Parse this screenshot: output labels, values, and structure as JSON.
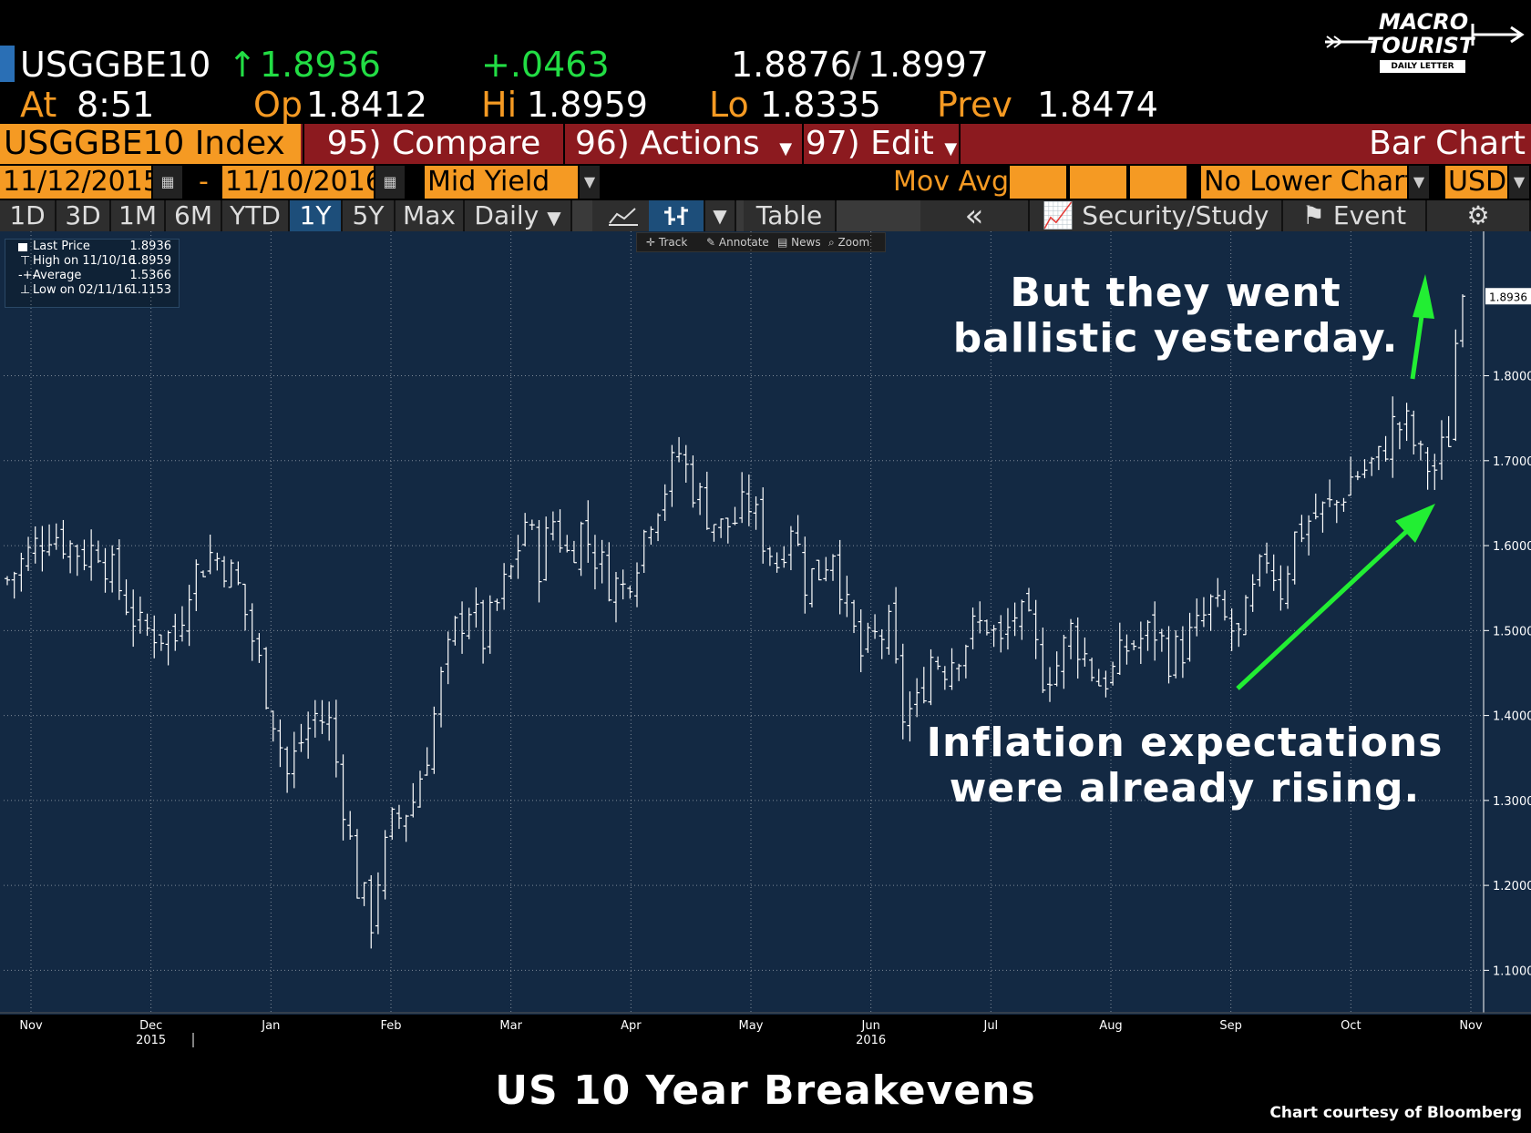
{
  "quote": {
    "ticker": "USGGBE10",
    "last": "1.8936",
    "arrow": "↑",
    "change": "+.0463",
    "bid": "1.8876",
    "sep": "/",
    "ask": "1.8997",
    "at_label": "At",
    "time": "8:51",
    "op_label": "Op",
    "open": "1.8412",
    "hi_label": "Hi",
    "high": "1.8959",
    "lo_label": "Lo",
    "low": "1.8335",
    "prev_label": "Prev",
    "prev": "1.8474"
  },
  "logo": {
    "line1": "MACRO",
    "line2": "TOURIST",
    "line3": "DAILY LETTER"
  },
  "menubar": {
    "security": "USGGBE10 Index",
    "compare": "95) Compare",
    "actions": "96) Actions",
    "edit": "97) Edit",
    "chart_type": "Bar Chart"
  },
  "settings": {
    "start_date": "11/12/2015",
    "dash": "-",
    "end_date": "11/10/2016",
    "field": "Mid Yield",
    "mov_avg": "Mov Avg",
    "lower_chart": "No Lower Chart",
    "currency": "USD"
  },
  "toolbar": {
    "periods": [
      "1D",
      "3D",
      "1M",
      "6M",
      "YTD",
      "1Y",
      "5Y",
      "Max"
    ],
    "selected_period": "1Y",
    "frequency": "Daily",
    "table": "Table",
    "collapse": "«",
    "security_study": "Security/Study",
    "event": "Event",
    "tools": [
      "Track",
      "Annotate",
      "News",
      "Zoom"
    ]
  },
  "legend": [
    {
      "label": "Last Price",
      "value": "1.8936"
    },
    {
      "label": "High on 11/10/16",
      "value": "1.8959"
    },
    {
      "label": "Average",
      "value": "1.5366"
    },
    {
      "label": "Low on 02/11/16",
      "value": "1.1153"
    }
  ],
  "annotations": {
    "top1": "But they went",
    "top2": "ballistic yesterday.",
    "bottom1": "Inflation expectations",
    "bottom2": "were already rising."
  },
  "colors": {
    "accent": "#f59a23",
    "arrow": "#22ee33",
    "chart_bg": "#132943",
    "bar": "#ffffff"
  },
  "chart_data": {
    "type": "bar",
    "title": "US 10 Year Breakevens",
    "credit": "Chart courtesy of Bloomberg",
    "last_price_tag": "1.8936",
    "ylim": [
      1.05,
      1.97
    ],
    "y_ticks": [
      "1.1000",
      "1.2000",
      "1.3000",
      "1.4000",
      "1.5000",
      "1.6000",
      "1.7000",
      "1.8000"
    ],
    "x_months": [
      "Nov",
      "Dec",
      "Jan",
      "Feb",
      "Mar",
      "Apr",
      "May",
      "Jun",
      "Jul",
      "Aug",
      "Sep",
      "Oct",
      "Nov"
    ],
    "x_years": [
      "2015",
      "2016"
    ],
    "series": [
      {
        "keypoints": [
          [
            0,
            1.56
          ],
          [
            4,
            1.6
          ],
          [
            6,
            1.62
          ],
          [
            9,
            1.6
          ],
          [
            11,
            1.59
          ],
          [
            13,
            1.6
          ],
          [
            16,
            1.55
          ],
          [
            19,
            1.5
          ],
          [
            21,
            1.5
          ],
          [
            24,
            1.49
          ],
          [
            26,
            1.56
          ],
          [
            29,
            1.59
          ],
          [
            31,
            1.58
          ],
          [
            33,
            1.55
          ],
          [
            36,
            1.46
          ],
          [
            38,
            1.4
          ],
          [
            40,
            1.33
          ],
          [
            42,
            1.37
          ],
          [
            44,
            1.4
          ],
          [
            46,
            1.39
          ],
          [
            48,
            1.3
          ],
          [
            50,
            1.2
          ],
          [
            52,
            1.16
          ],
          [
            53,
            1.21
          ],
          [
            55,
            1.27
          ],
          [
            58,
            1.3
          ],
          [
            60,
            1.36
          ],
          [
            62,
            1.44
          ],
          [
            64,
            1.5
          ],
          [
            66,
            1.53
          ],
          [
            68,
            1.49
          ],
          [
            70,
            1.53
          ],
          [
            72,
            1.57
          ],
          [
            74,
            1.63
          ],
          [
            76,
            1.58
          ],
          [
            78,
            1.63
          ],
          [
            80,
            1.59
          ],
          [
            82,
            1.62
          ],
          [
            84,
            1.59
          ],
          [
            86,
            1.56
          ],
          [
            88,
            1.55
          ],
          [
            90,
            1.59
          ],
          [
            92,
            1.64
          ],
          [
            94,
            1.67
          ],
          [
            96,
            1.71
          ],
          [
            98,
            1.67
          ],
          [
            100,
            1.64
          ],
          [
            102,
            1.62
          ],
          [
            104,
            1.63
          ],
          [
            106,
            1.65
          ],
          [
            108,
            1.61
          ],
          [
            110,
            1.58
          ],
          [
            112,
            1.63
          ],
          [
            114,
            1.56
          ],
          [
            116,
            1.57
          ],
          [
            118,
            1.6
          ],
          [
            120,
            1.52
          ],
          [
            122,
            1.47
          ],
          [
            124,
            1.49
          ],
          [
            126,
            1.5
          ],
          [
            128,
            1.4
          ],
          [
            130,
            1.41
          ],
          [
            132,
            1.47
          ],
          [
            134,
            1.46
          ],
          [
            136,
            1.48
          ],
          [
            138,
            1.5
          ],
          [
            140,
            1.51
          ],
          [
            142,
            1.48
          ],
          [
            144,
            1.52
          ],
          [
            146,
            1.5
          ],
          [
            148,
            1.45
          ],
          [
            150,
            1.46
          ],
          [
            152,
            1.5
          ],
          [
            154,
            1.47
          ],
          [
            156,
            1.44
          ],
          [
            158,
            1.45
          ],
          [
            160,
            1.48
          ],
          [
            162,
            1.49
          ],
          [
            164,
            1.5
          ],
          [
            166,
            1.47
          ],
          [
            168,
            1.48
          ],
          [
            170,
            1.5
          ],
          [
            172,
            1.53
          ],
          [
            174,
            1.51
          ],
          [
            176,
            1.49
          ],
          [
            178,
            1.54
          ],
          [
            180,
            1.59
          ],
          [
            182,
            1.55
          ],
          [
            184,
            1.61
          ],
          [
            186,
            1.63
          ],
          [
            188,
            1.64
          ],
          [
            190,
            1.65
          ],
          [
            192,
            1.68
          ],
          [
            194,
            1.69
          ],
          [
            196,
            1.7
          ],
          [
            198,
            1.74
          ],
          [
            200,
            1.74
          ],
          [
            202,
            1.7
          ],
          [
            204,
            1.69
          ],
          [
            206,
            1.73
          ],
          [
            207,
            1.84
          ],
          [
            208,
            1.89
          ]
        ],
        "last": 1.8936
      }
    ]
  }
}
